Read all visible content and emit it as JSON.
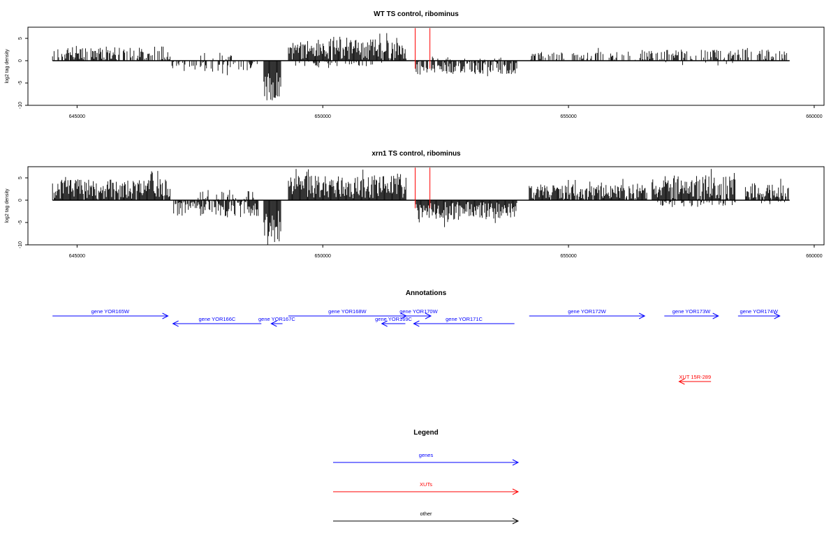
{
  "chart_data": [
    {
      "type": "bar",
      "title": "WT TS control, ribominus",
      "ylabel": "log2 tag density",
      "xlim": [
        644000,
        660200
      ],
      "ylim": [
        -10,
        7.5
      ],
      "xticks": [
        645000,
        650000,
        655000,
        660000
      ],
      "yticks": [
        5,
        0,
        -5,
        -10
      ],
      "markers": [
        651880,
        652180
      ],
      "segments": [
        {
          "x0": 644500,
          "x1": 646900,
          "sign": 1,
          "mean": 1.6,
          "amp": 1.6,
          "density": 0.7
        },
        {
          "x0": 646930,
          "x1": 648700,
          "sign": -1,
          "mean": 1.2,
          "amp": 1.2,
          "density": 0.45
        },
        {
          "x0": 647500,
          "x1": 648200,
          "sign": 1,
          "mean": 0.8,
          "amp": 1.0,
          "density": 0.25
        },
        {
          "x0": 648800,
          "x1": 649150,
          "sign": -1,
          "mean": 5.5,
          "amp": 3.6,
          "density": 1.0
        },
        {
          "x0": 649300,
          "x1": 651700,
          "sign": 1,
          "mean": 2.5,
          "amp": 2.4,
          "density": 0.95
        },
        {
          "x0": 649400,
          "x1": 651400,
          "sign": -1,
          "mean": 0.6,
          "amp": 0.6,
          "density": 0.25
        },
        {
          "x0": 651900,
          "x1": 653950,
          "sign": -1,
          "mean": 1.6,
          "amp": 1.4,
          "density": 0.75
        },
        {
          "x0": 652200,
          "x1": 653700,
          "sign": 1,
          "mean": 0.4,
          "amp": 0.5,
          "density": 0.15
        },
        {
          "x0": 654200,
          "x1": 656500,
          "sign": 1,
          "mean": 1.1,
          "amp": 0.9,
          "density": 0.4
        },
        {
          "x0": 656500,
          "x1": 659500,
          "sign": 1,
          "mean": 1.3,
          "amp": 1.2,
          "density": 0.5
        },
        {
          "x0": 656900,
          "x1": 658500,
          "sign": -1,
          "mean": 0.5,
          "amp": 0.6,
          "density": 0.08
        }
      ]
    },
    {
      "type": "bar",
      "title": "xrn1 TS control, ribominus",
      "ylabel": "log2 tag density",
      "xlim": [
        644000,
        660200
      ],
      "ylim": [
        -10,
        7.5
      ],
      "xticks": [
        645000,
        650000,
        655000,
        660000
      ],
      "yticks": [
        5,
        0,
        -5,
        -10
      ],
      "markers": [
        651880,
        652180
      ],
      "segments": [
        {
          "x0": 644500,
          "x1": 646900,
          "sign": 1,
          "mean": 2.5,
          "amp": 2.2,
          "density": 0.95
        },
        {
          "x0": 646950,
          "x1": 648700,
          "sign": -1,
          "mean": 1.8,
          "amp": 1.8,
          "density": 0.8
        },
        {
          "x0": 647400,
          "x1": 648600,
          "sign": 1,
          "mean": 1.0,
          "amp": 1.3,
          "density": 0.3
        },
        {
          "x0": 648800,
          "x1": 649150,
          "sign": -1,
          "mean": 5.8,
          "amp": 3.6,
          "density": 1.0
        },
        {
          "x0": 649300,
          "x1": 651700,
          "sign": 1,
          "mean": 3.0,
          "amp": 2.6,
          "density": 1.0
        },
        {
          "x0": 651900,
          "x1": 653950,
          "sign": -1,
          "mean": 2.4,
          "amp": 2.0,
          "density": 1.0
        },
        {
          "x0": 654200,
          "x1": 656600,
          "sign": 1,
          "mean": 1.9,
          "amp": 1.6,
          "density": 0.9
        },
        {
          "x0": 656700,
          "x1": 658400,
          "sign": 1,
          "mean": 2.8,
          "amp": 2.8,
          "density": 0.9
        },
        {
          "x0": 656800,
          "x1": 658400,
          "sign": -1,
          "mean": 0.8,
          "amp": 0.8,
          "density": 0.3
        },
        {
          "x0": 658600,
          "x1": 659500,
          "sign": 1,
          "mean": 2.0,
          "amp": 1.5,
          "density": 0.8
        },
        {
          "x0": 658600,
          "x1": 659400,
          "sign": -1,
          "mean": 0.5,
          "amp": 0.5,
          "density": 0.15
        }
      ]
    }
  ],
  "annotations": {
    "title": "Annotations",
    "items": [
      {
        "label": "gene YOR165W",
        "start": 644500,
        "end": 646850,
        "strand": "+",
        "row": 0,
        "kind": "gene"
      },
      {
        "label": "gene YOR166C",
        "start": 646950,
        "end": 648750,
        "strand": "-",
        "row": 1,
        "kind": "gene"
      },
      {
        "label": "gene YOR167C",
        "start": 648950,
        "end": 649180,
        "strand": "-",
        "row": 1,
        "kind": "gene"
      },
      {
        "label": "gene YOR168W",
        "start": 649300,
        "end": 651700,
        "strand": "+",
        "row": 0,
        "kind": "gene"
      },
      {
        "label": "gene YOR169C",
        "start": 651200,
        "end": 651680,
        "strand": "-",
        "row": 1,
        "kind": "gene"
      },
      {
        "label": "gene YOR170W",
        "start": 651700,
        "end": 652200,
        "strand": "+",
        "row": 0,
        "kind": "gene"
      },
      {
        "label": "gene YOR171C",
        "start": 651850,
        "end": 653900,
        "strand": "-",
        "row": 1,
        "kind": "gene"
      },
      {
        "label": "gene YOR172W",
        "start": 654200,
        "end": 656550,
        "strand": "+",
        "row": 0,
        "kind": "gene"
      },
      {
        "label": "gene YOR173W",
        "start": 656950,
        "end": 658050,
        "strand": "+",
        "row": 0,
        "kind": "gene"
      },
      {
        "label": "gene YOR174W",
        "start": 658450,
        "end": 659300,
        "strand": "+",
        "row": 0,
        "kind": "gene"
      },
      {
        "label": "XUT 15R-289",
        "start": 657250,
        "end": 657900,
        "strand": "-",
        "row": 2,
        "kind": "xut"
      }
    ]
  },
  "legend": {
    "title": "Legend",
    "items": [
      {
        "label": "genes",
        "kind": "gene"
      },
      {
        "label": "XUTs",
        "kind": "xut"
      },
      {
        "label": "other",
        "kind": "other"
      }
    ]
  },
  "colors": {
    "gene": "#0000ff",
    "xut": "#ff0000",
    "other": "#000000",
    "marker": "#ff0000",
    "bars": "#000000"
  }
}
